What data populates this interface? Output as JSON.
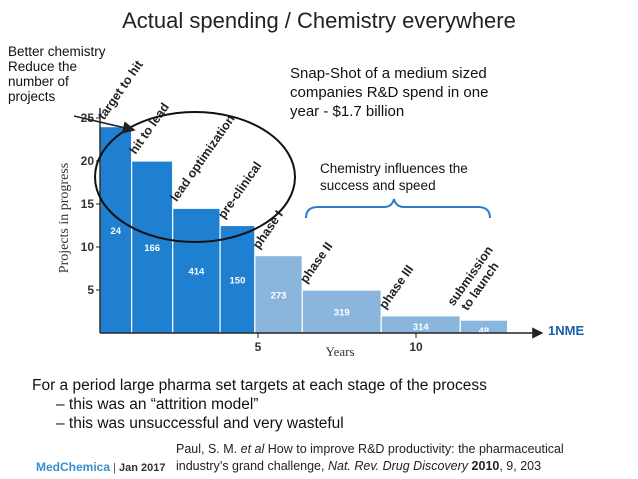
{
  "slide": {
    "title": "Actual spending / Chemistry everywhere",
    "annotation_left": [
      "Better chemistry",
      "Reduce the",
      "number of",
      "projects"
    ],
    "snapshot": [
      "Snap-Shot of a medium sized",
      "companies R&D spend in one",
      "year - $1.7 billion"
    ],
    "chemistry_note": [
      "Chemistry influences the",
      "success and speed"
    ],
    "bullets": {
      "main": "For a period large pharma set targets at each stage of the process",
      "sub1": "– this was an “attrition model”",
      "sub2": "– this was unsuccessful and very wasteful"
    },
    "citation": {
      "authors": "Paul, S. M.",
      "etal": "et al",
      "title_text": "How to improve R&D productivity: the pharmaceutical",
      "line2_start": "industry’s grand challenge,",
      "journal": "Nat. Rev. Drug Discovery",
      "year": "2010",
      "rest": ", 9, 203"
    },
    "footer": {
      "brand": "MedChemica",
      "separator": "|",
      "date": "Jan 2017"
    }
  },
  "chart_data": {
    "type": "bar",
    "categories": [
      "target to hit",
      "hit to lead",
      "lead optimization",
      "pre-clinical",
      "phase I",
      "phase II",
      "phase III",
      "submission to launch"
    ],
    "values": [
      24,
      20,
      14.5,
      12.5,
      9,
      5,
      2,
      1.5
    ],
    "bar_labels": [
      "24",
      "166",
      "414",
      "150",
      "273",
      "319",
      "314",
      "48"
    ],
    "bar_widths_years": [
      1,
      1.3,
      1.5,
      1.1,
      1.5,
      2.5,
      2.5,
      1.5
    ],
    "colors": [
      "#1f7fd0",
      "#1f7fd0",
      "#1f7fd0",
      "#1f7fd0",
      "#8ab6de",
      "#8ab6de",
      "#8ab6de",
      "#8ab6de"
    ],
    "ylabel": "Projects in progress",
    "xlabel": "Years",
    "yticks": [
      5,
      10,
      15,
      20,
      25
    ],
    "xticks": [
      5,
      10
    ],
    "ylim": [
      0,
      25
    ],
    "end_label": "1NME"
  }
}
